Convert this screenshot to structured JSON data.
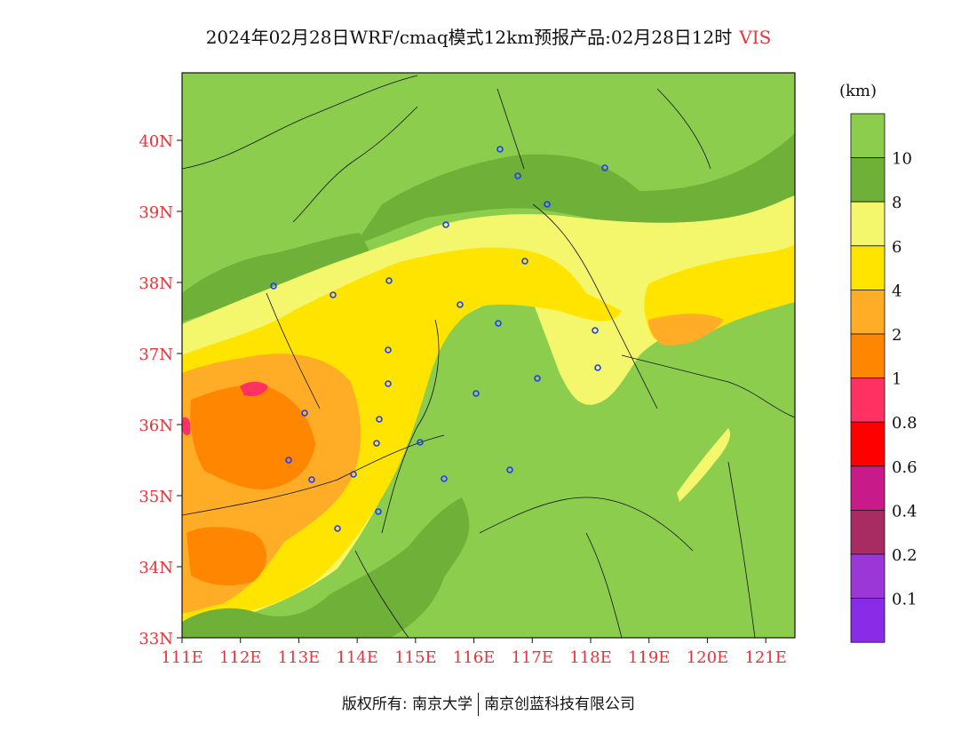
{
  "title": {
    "main": "2024年02月28日WRF/cmaq模式12km预报产品:02月28日12时",
    "variable": "VIS"
  },
  "map": {
    "lat_labels": [
      "40N",
      "39N",
      "38N",
      "37N",
      "36N",
      "35N",
      "34N",
      "33N"
    ],
    "lon_labels": [
      "111E",
      "112E",
      "113E",
      "114E",
      "115E",
      "116E",
      "117E",
      "118E",
      "119E",
      "120E",
      "121E"
    ],
    "axis_label_color": "#e8333a",
    "extent": {
      "lon_min": 111,
      "lon_max": 121.5,
      "lat_min": 33,
      "lat_max": 40.95
    },
    "station_marker_color": "#1e3cff"
  },
  "legend": {
    "unit": "(km)",
    "bins": [
      {
        "label": "",
        "color": "#8ccd4e"
      },
      {
        "label": "10",
        "color": "#6eb038"
      },
      {
        "label": "8",
        "color": "#f4f66c"
      },
      {
        "label": "6",
        "color": "#ffe400"
      },
      {
        "label": "4",
        "color": "#ffad27"
      },
      {
        "label": "2",
        "color": "#ff8600"
      },
      {
        "label": "1",
        "color": "#ff3162"
      },
      {
        "label": "0.8",
        "color": "#ff0000"
      },
      {
        "label": "0.6",
        "color": "#c81a88"
      },
      {
        "label": "0.4",
        "color": "#a82b62"
      },
      {
        "label": "0.2",
        "color": "#9b37d6"
      },
      {
        "label": "0.1",
        "color": "#8a2be8"
      }
    ]
  },
  "footer": {
    "copyright": "版权所有: 南京大学",
    "company": "南京创蓝科技有限公司"
  }
}
